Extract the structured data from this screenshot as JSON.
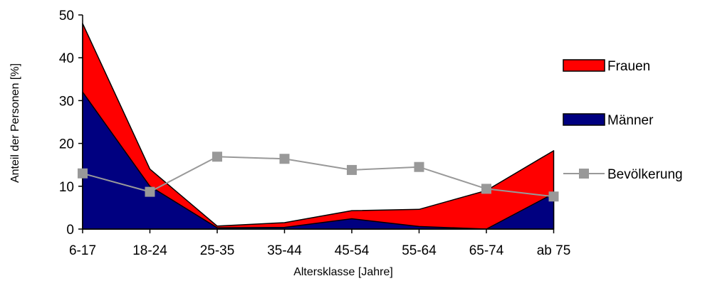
{
  "chart_data": {
    "type": "area",
    "categories": [
      "6-17",
      "18-24",
      "25-35",
      "35-44",
      "45-54",
      "55-64",
      "65-74",
      "ab 75"
    ],
    "xlabel": "Altersklasse [Jahre]",
    "ylabel": "Anteil der Personen [%]",
    "ylim": [
      0,
      50
    ],
    "yticks": [
      0,
      10,
      20,
      30,
      40,
      50
    ],
    "grid": false,
    "legend_position": "right",
    "series": [
      {
        "name": "Frauen",
        "kind": "area",
        "color": "#ff0000",
        "values": [
          48,
          14,
          0.7,
          1.5,
          4.3,
          4.6,
          9,
          18.3
        ]
      },
      {
        "name": "Männer",
        "kind": "area",
        "color": "#000080",
        "values": [
          32,
          10,
          0.3,
          0.4,
          2.4,
          0.6,
          0,
          8.3
        ]
      },
      {
        "name": "Bevölkerung",
        "kind": "line",
        "marker": "square",
        "color": "#999999",
        "values": [
          13,
          8.7,
          16.9,
          16.4,
          13.8,
          14.5,
          9.4,
          7.6
        ]
      }
    ]
  }
}
